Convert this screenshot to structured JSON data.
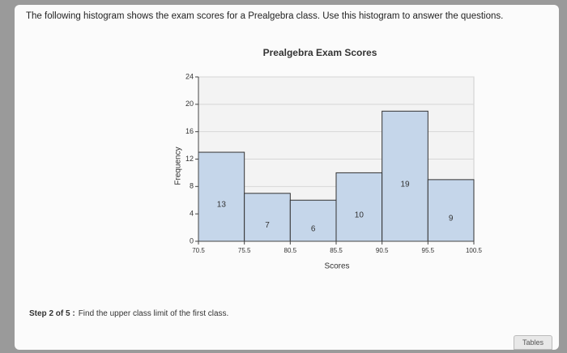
{
  "question": "The following histogram shows the exam scores for a Prealgebra class. Use this histogram to answer the questions.",
  "chart_data": {
    "type": "histogram",
    "title": "Prealgebra Exam Scores",
    "x_label": "Scores",
    "y_label": "Frequency",
    "bins": [
      70.5,
      75.5,
      80.5,
      85.5,
      90.5,
      95.5,
      100.5
    ],
    "values": [
      13,
      7,
      6,
      10,
      19,
      9
    ],
    "color": "#c5d6ea",
    "xlim": [
      70.5,
      100.5
    ],
    "ylim": [
      0,
      24
    ],
    "yticks": [
      0,
      4,
      8,
      12,
      16,
      20,
      24
    ],
    "grid": true
  },
  "step": {
    "label": "Step 2 of 5 :",
    "text": "Find the upper class limit of the first class."
  },
  "tables_button": "Tables"
}
